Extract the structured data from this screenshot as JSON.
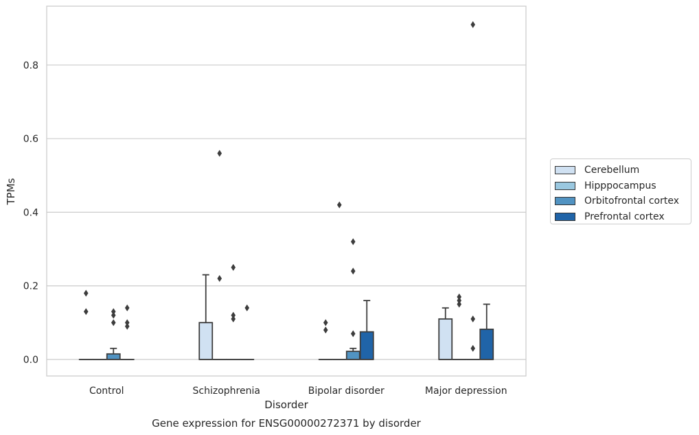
{
  "chart_data": {
    "type": "box",
    "title": "",
    "caption": "Gene expression for ENSG00000272371 by disorder",
    "xlabel": "Disorder",
    "ylabel": "TPMs",
    "ylim": [
      -0.045,
      0.96
    ],
    "yticks": [
      0.0,
      0.2,
      0.4,
      0.6,
      0.8
    ],
    "ytick_labels": [
      "0.0",
      "0.2",
      "0.4",
      "0.6",
      "0.8"
    ],
    "grid": true,
    "legend_position": "right",
    "categories": [
      "Control",
      "Schizophrenia",
      "Bipolar disorder",
      "Major depression"
    ],
    "series": [
      {
        "name": "Cerebellum",
        "color": "#d0e1f2",
        "boxes": [
          {
            "q1": 0,
            "median": 0,
            "q3": 0,
            "whisker_low": 0,
            "whisker_high": 0,
            "outliers": [
              0.13,
              0.18
            ]
          },
          {
            "q1": 0,
            "median": 0,
            "q3": 0.1,
            "whisker_low": 0,
            "whisker_high": 0.23,
            "outliers": []
          },
          {
            "q1": 0,
            "median": 0,
            "q3": 0,
            "whisker_low": 0,
            "whisker_high": 0,
            "outliers": [
              0.08,
              0.1
            ]
          },
          {
            "q1": 0,
            "median": 0,
            "q3": 0.11,
            "whisker_low": 0,
            "whisker_high": 0.14,
            "outliers": []
          }
        ]
      },
      {
        "name": "Hipppocampus",
        "color": "#9ac8e0",
        "boxes": [
          {
            "q1": 0,
            "median": 0,
            "q3": 0,
            "whisker_low": 0,
            "whisker_high": 0,
            "outliers": []
          },
          {
            "q1": 0,
            "median": 0,
            "q3": 0,
            "whisker_low": 0,
            "whisker_high": 0,
            "outliers": [
              0.22,
              0.56
            ]
          },
          {
            "q1": 0,
            "median": 0,
            "q3": 0,
            "whisker_low": 0,
            "whisker_high": 0,
            "outliers": [
              0.42
            ]
          },
          {
            "q1": 0,
            "median": 0,
            "q3": 0,
            "whisker_low": 0,
            "whisker_high": 0,
            "outliers": [
              0.15,
              0.16,
              0.17
            ]
          }
        ]
      },
      {
        "name": "Orbitofrontal cortex",
        "color": "#5193c2",
        "boxes": [
          {
            "q1": 0,
            "median": 0,
            "q3": 0.015,
            "whisker_low": 0,
            "whisker_high": 0.03,
            "outliers": [
              0.1,
              0.12,
              0.13
            ]
          },
          {
            "q1": 0,
            "median": 0,
            "q3": 0,
            "whisker_low": 0,
            "whisker_high": 0,
            "outliers": [
              0.11,
              0.12,
              0.25
            ]
          },
          {
            "q1": 0,
            "median": 0,
            "q3": 0.022,
            "whisker_low": 0,
            "whisker_high": 0.03,
            "outliers": [
              0.07,
              0.24,
              0.32
            ]
          },
          {
            "q1": 0,
            "median": 0,
            "q3": 0,
            "whisker_low": 0,
            "whisker_high": 0,
            "outliers": [
              0.03,
              0.11,
              0.91
            ]
          }
        ]
      },
      {
        "name": "Prefrontal cortex",
        "color": "#2064a8",
        "boxes": [
          {
            "q1": 0,
            "median": 0,
            "q3": 0,
            "whisker_low": 0,
            "whisker_high": 0,
            "outliers": [
              0.09,
              0.1,
              0.14
            ]
          },
          {
            "q1": 0,
            "median": 0,
            "q3": 0,
            "whisker_low": 0,
            "whisker_high": 0,
            "outliers": [
              0.14
            ]
          },
          {
            "q1": 0,
            "median": 0,
            "q3": 0.075,
            "whisker_low": 0,
            "whisker_high": 0.16,
            "outliers": []
          },
          {
            "q1": 0,
            "median": 0,
            "q3": 0.082,
            "whisker_low": 0,
            "whisker_high": 0.15,
            "outliers": []
          }
        ]
      }
    ]
  }
}
